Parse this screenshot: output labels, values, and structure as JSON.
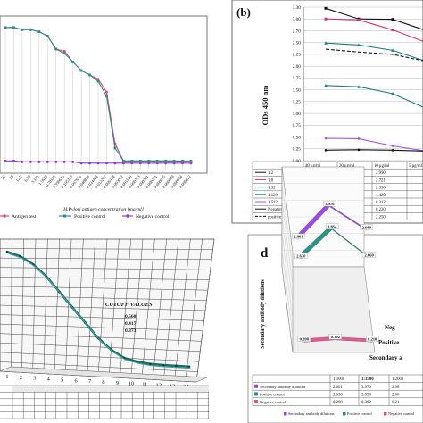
{
  "panel_a": {
    "xlabel": "H.Pylori antigen concentration [mg/ml]",
    "legend": [
      "Antigen test",
      "Positive control",
      "Negative control"
    ],
    "tick_labels": [
      "50",
      "25",
      "12.5",
      "6.25",
      "3.125",
      "1.5625",
      "0.78125",
      "0.390625",
      "0.195313",
      "0.097656",
      "0.048828",
      "0.024414",
      "0.012207",
      "0.006104",
      "0.003052",
      "0.001526",
      "0.000763",
      "0.000381",
      "0.000191",
      "0.000095",
      "0.000048",
      "0.000024",
      "0.000012"
    ]
  },
  "panel_b": {
    "label": "(b)",
    "ylabel": "ODs 450 nm",
    "yticks": [
      "3.30",
      "3.00",
      "2.70",
      "2.50",
      "2.25",
      "2.00",
      "1.75",
      "1.50",
      "1.25",
      "1.00",
      "0.75",
      "0.50",
      "0.25",
      "0.00"
    ],
    "columns": [
      "40 μg/ml",
      "20 μg/ml",
      "10 μg/ml",
      "5 μg/ml"
    ],
    "rows": [
      {
        "name": "1:2",
        "values": [
          "3.270",
          "3.00",
          "2.990",
          ""
        ]
      },
      {
        "name": "1:8",
        "values": [
          "3.001",
          "2.976",
          "2.721",
          ""
        ]
      },
      {
        "name": "1:32",
        "values": [
          "2.490",
          "2.450",
          "2.336",
          ""
        ]
      },
      {
        "name": "1:128",
        "values": [
          "1.590",
          "1.564",
          "1.420",
          ""
        ]
      },
      {
        "name": "1:512",
        "values": [
          "0.472",
          "0.464",
          "0.312",
          ""
        ]
      },
      {
        "name": "Negative control",
        "values": [
          "0.221",
          "0.230",
          "0.220",
          ""
        ]
      },
      {
        "name": "positive control",
        "values": [
          "2.360",
          "2.300",
          "2.250",
          ""
        ]
      }
    ]
  },
  "panel_c": {
    "annotation": "CUTOFF VALUES",
    "cutoff_values": [
      "0.560",
      "0.417",
      "0.373"
    ],
    "xticks": [
      "1",
      "2",
      "3",
      "4",
      "5",
      "6",
      "7",
      "8",
      "9",
      "10",
      "11",
      "12",
      "13",
      "14",
      "15"
    ]
  },
  "panel_d": {
    "label": "d",
    "ylabel": "Secondary antibody dilutions",
    "axis_labels": [
      "Neg",
      "Positive",
      "Secondary a"
    ],
    "table_header": [
      "",
      "1:1000",
      "1:1500",
      "1:2000"
    ],
    "table_rows": [
      {
        "name": "Secondary antibody dilutions",
        "values": [
          "2.601",
          "3.976",
          "2.98"
        ]
      },
      {
        "name": "Positive control",
        "values": [
          "2.630",
          "3.854",
          "2.66"
        ]
      },
      {
        "name": "Negative control",
        "values": [
          "0.208",
          "0.302",
          "0.21"
        ]
      }
    ],
    "legend": [
      "Secondary antibody dilutions",
      "Positive control",
      "Negative control"
    ]
  },
  "colors": {
    "antigen": "#e0467a",
    "positive": "#2a8f8a",
    "negative": "#8a3fd1",
    "b_black": "#111111",
    "b_pink": "#d6336c",
    "b_teal": "#1c7c7c",
    "b_purple": "#9b59d0",
    "d_purple": "#9b3fe6",
    "d_teal": "#1f8f80",
    "d_pink": "#e8508a"
  },
  "chart_data": [
    {
      "type": "line",
      "panel": "a",
      "xlabel": "H.Pylori antigen concentration [mg/ml]",
      "categories": [
        "50",
        "25",
        "12.5",
        "6.25",
        "3.125",
        "1.5625",
        "0.78125",
        "0.390625",
        "0.195313",
        "0.097656",
        "0.048828",
        "0.024414",
        "0.012207",
        "0.006104",
        "0.003052",
        "0.001526",
        "0.000763",
        "0.000381",
        "0.000191",
        "0.000095",
        "0.000048",
        "0.000024",
        "0.000012"
      ],
      "series": [
        {
          "name": "Antigen test",
          "values": [
            3.3,
            3.3,
            3.25,
            3.25,
            3.2,
            3.1,
            2.8,
            2.75,
            2.5,
            2.3,
            2.2,
            2.1,
            1.8,
            0.6,
            0.2,
            0.2,
            0.2,
            0.2,
            0.2,
            0.2,
            0.2,
            0.18,
            0.18
          ]
        },
        {
          "name": "Positive control",
          "values": [
            3.3,
            3.3,
            3.25,
            3.25,
            3.2,
            3.1,
            2.8,
            2.7,
            2.5,
            2.3,
            2.2,
            2.05,
            1.7,
            0.5,
            0.2,
            0.2,
            0.2,
            0.2,
            0.2,
            0.2,
            0.2,
            0.2,
            0.2
          ]
        },
        {
          "name": "Negative control",
          "values": [
            0.2,
            0.2,
            0.18,
            0.18,
            0.18,
            0.18,
            0.18,
            0.18,
            0.18,
            0.15,
            0.15,
            0.15,
            0.15,
            0.15,
            0.15,
            0.15,
            0.15,
            0.15,
            0.15,
            0.15,
            0.15,
            0.15,
            0.15
          ]
        }
      ]
    },
    {
      "type": "line",
      "panel": "b",
      "ylabel": "ODs 450 nm",
      "ylim": [
        0,
        3.3
      ],
      "categories": [
        "40 μg/ml",
        "20 μg/ml",
        "10 μg/ml",
        "5 μg/ml"
      ],
      "series": [
        {
          "name": "1:2",
          "values": [
            3.27,
            3.0,
            2.99,
            2.7
          ]
        },
        {
          "name": "1:8",
          "values": [
            3.001,
            2.976,
            2.721,
            2.5
          ]
        },
        {
          "name": "1:32",
          "values": [
            2.49,
            2.45,
            2.336,
            2.1
          ]
        },
        {
          "name": "1:128",
          "values": [
            1.59,
            1.564,
            1.42,
            1.1
          ]
        },
        {
          "name": "1:512",
          "values": [
            0.472,
            0.464,
            0.312,
            0.2
          ]
        },
        {
          "name": "Negative control",
          "values": [
            0.221,
            0.23,
            0.22,
            0.2
          ]
        },
        {
          "name": "positive control",
          "values": [
            2.36,
            2.3,
            2.25,
            2.1
          ]
        }
      ]
    },
    {
      "type": "line",
      "panel": "c",
      "categories": [
        "1",
        "2",
        "3",
        "4",
        "5",
        "6",
        "7",
        "8",
        "9",
        "10",
        "11",
        "12",
        "13",
        "14",
        "15"
      ],
      "series": [
        {
          "values": [
            3.2,
            3.1,
            2.9,
            2.6,
            2.2,
            1.8,
            1.4,
            1.0,
            0.7,
            0.5,
            0.42,
            0.38,
            0.37,
            0.37,
            0.37
          ]
        }
      ]
    },
    {
      "type": "line",
      "panel": "d",
      "categories": [
        "1:1000",
        "1:1500",
        "1:2000"
      ],
      "series": [
        {
          "name": "Secondary antibody dilutions",
          "values": [
            2.601,
            3.976,
            2.98
          ]
        },
        {
          "name": "Positive control",
          "values": [
            2.63,
            3.854,
            2.66
          ]
        },
        {
          "name": "Negative control",
          "values": [
            0.208,
            0.302,
            0.21
          ]
        }
      ]
    }
  ]
}
